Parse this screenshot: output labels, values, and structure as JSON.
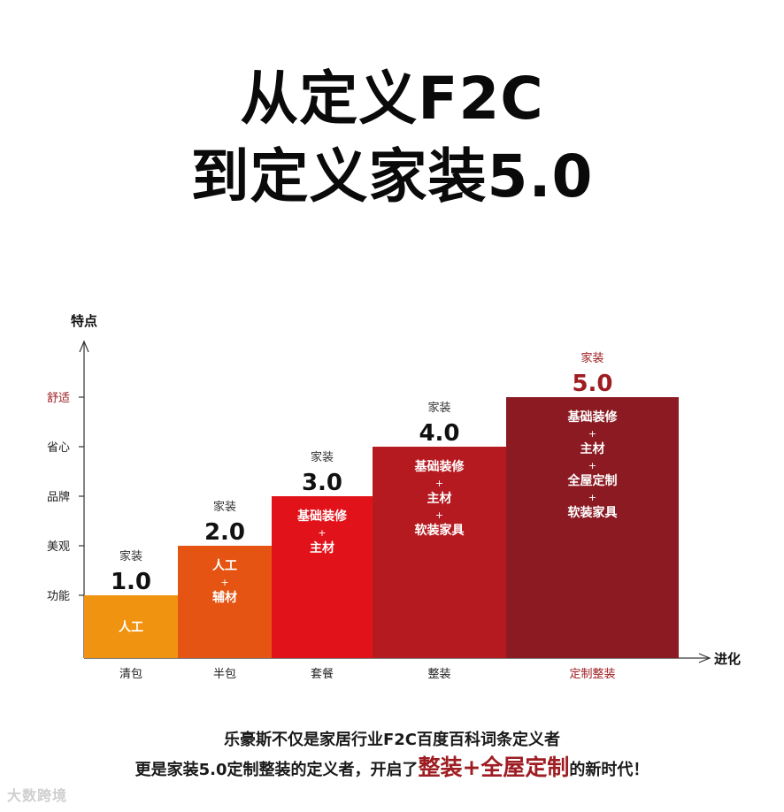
{
  "title": {
    "line1": "从定义F2C",
    "line2": "到定义家装5.0"
  },
  "colors": {
    "bar_1": "#f09310",
    "bar_2": "#e55412",
    "bar_3": "#e2121a",
    "bar_4": "#b61a21",
    "bar_5": "#8c1a22",
    "accent": "#9e1d22"
  },
  "chart_data": {
    "type": "bar",
    "ylabel": "特点",
    "xlabel": "进化",
    "y_ticks": [
      "功能",
      "美观",
      "品牌",
      "省心",
      "舒适"
    ],
    "categories": [
      "清包",
      "半包",
      "套餐",
      "整装",
      "定制整装"
    ],
    "values": [
      1,
      2,
      3,
      4,
      5
    ],
    "ylim": [
      0,
      5
    ],
    "bar_top_labels": [
      {
        "small": "家装",
        "big": "1.0"
      },
      {
        "small": "家装",
        "big": "2.0"
      },
      {
        "small": "家装",
        "big": "3.0"
      },
      {
        "small": "家装",
        "big": "4.0"
      },
      {
        "small": "家装",
        "big": "5.0"
      }
    ],
    "bar_inner_text": [
      [
        "人工"
      ],
      [
        "人工",
        "+",
        "辅材"
      ],
      [
        "基础装修",
        "+",
        "主材"
      ],
      [
        "基础装修",
        "+",
        "主材",
        "+",
        "软装家具"
      ],
      [
        "基础装修",
        "+",
        "主材",
        "+",
        "全屋定制",
        "+",
        "软装家具"
      ]
    ],
    "highlighted_y_tick": "舒适",
    "highlighted_category": "定制整装"
  },
  "footer": {
    "line1": "乐豪斯不仅是家居行业F2C百度百科词条定义者",
    "line2_prefix": "更是家装5.0定制整装的定义者，开启了",
    "line2_highlight": "整装+全屋定制",
    "line2_suffix": "的新时代！"
  },
  "watermark": "大数跨境"
}
